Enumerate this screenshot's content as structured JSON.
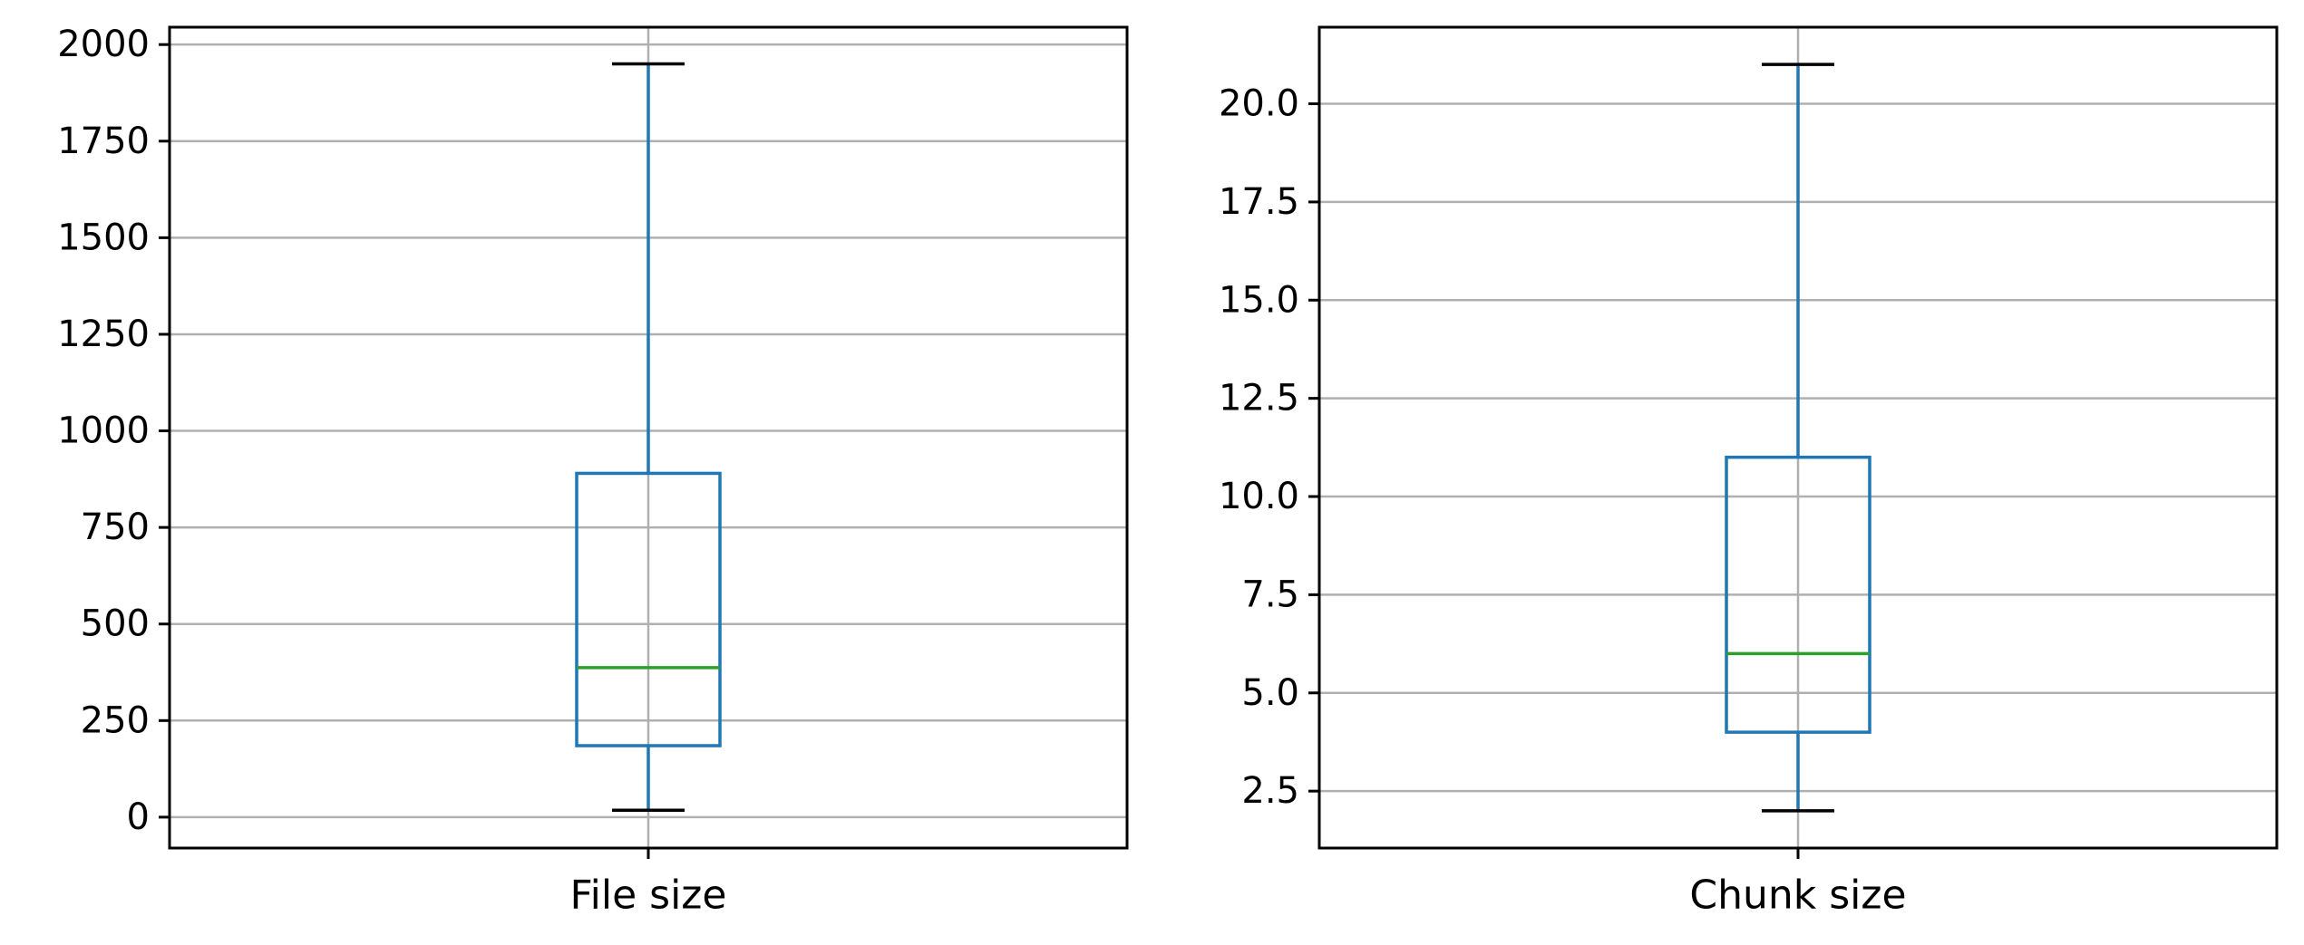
{
  "chart_data": [
    {
      "type": "box",
      "categories": [
        "File size"
      ],
      "stats": {
        "whisker_low": 18,
        "q1": 185,
        "median": 387,
        "q3": 890,
        "whisker_high": 1950
      },
      "ylim": [
        -80,
        2045
      ],
      "yticks": [
        0,
        250,
        500,
        750,
        1000,
        1250,
        1500,
        1750,
        2000
      ],
      "ytick_labels": [
        "0",
        "250",
        "500",
        "750",
        "1000",
        "1250",
        "1500",
        "1750",
        "2000"
      ],
      "grid": true,
      "colors": {
        "box": "#1f77b4",
        "median": "#2ca02c",
        "cap": "#000000",
        "grid": "#b0b0b0"
      }
    },
    {
      "type": "box",
      "categories": [
        "Chunk size"
      ],
      "stats": {
        "whisker_low": 2,
        "q1": 4,
        "median": 6,
        "q3": 11,
        "whisker_high": 21
      },
      "ylim": [
        1.05,
        21.95
      ],
      "yticks": [
        2.5,
        5.0,
        7.5,
        10.0,
        12.5,
        15.0,
        17.5,
        20.0
      ],
      "ytick_labels": [
        "2.5",
        "5.0",
        "7.5",
        "10.0",
        "12.5",
        "15.0",
        "17.5",
        "20.0"
      ],
      "grid": true,
      "colors": {
        "box": "#1f77b4",
        "median": "#2ca02c",
        "cap": "#000000",
        "grid": "#b0b0b0"
      }
    }
  ]
}
